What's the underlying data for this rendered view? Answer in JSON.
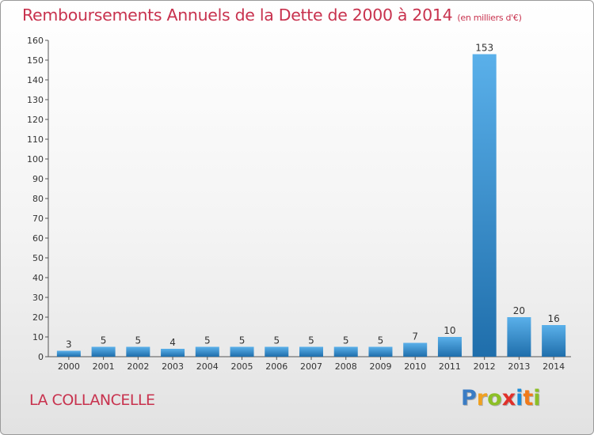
{
  "title": "Remboursements Annuels de la Dette de 2000 à 2014",
  "subtitle": "(en milliers d'€)",
  "commune": "LA COLLANCELLE",
  "logo": {
    "letters": [
      "P",
      "r",
      "o",
      "x",
      "i",
      "t",
      "i"
    ],
    "colors": [
      "#3a7cc4",
      "#f0a020",
      "#8cbf26",
      "#e0302a",
      "#1a8cd8",
      "#f07a1a",
      "#8cbf26"
    ]
  },
  "colors": {
    "accent": "#c8324e",
    "bar_light": "#5aaee6",
    "bar_dark": "#1e6fae"
  },
  "chart_data": {
    "type": "bar",
    "title": "Remboursements Annuels de la Dette de 2000 à 2014",
    "subtitle": "(en milliers d'€)",
    "categories": [
      "2000",
      "2001",
      "2002",
      "2003",
      "2004",
      "2005",
      "2006",
      "2007",
      "2008",
      "2009",
      "2010",
      "2011",
      "2012",
      "2013",
      "2014"
    ],
    "values": [
      3,
      5,
      5,
      4,
      5,
      5,
      5,
      5,
      5,
      5,
      7,
      10,
      153,
      20,
      16
    ],
    "ylim": [
      0,
      160
    ],
    "yticks": [
      0,
      10,
      20,
      30,
      40,
      50,
      60,
      70,
      80,
      90,
      100,
      110,
      120,
      130,
      140,
      150,
      160
    ],
    "xlabel": "",
    "ylabel": "",
    "grid": false,
    "data_labels": true
  }
}
